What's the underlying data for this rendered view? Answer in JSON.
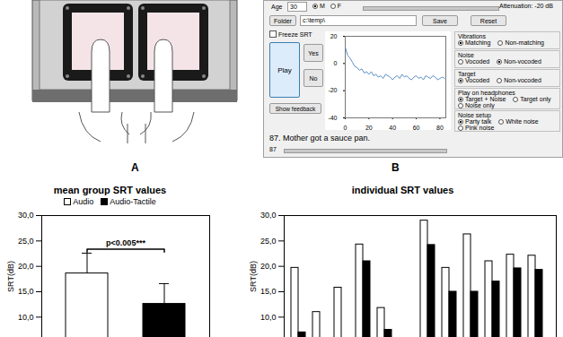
{
  "panels": [
    "A",
    "B"
  ],
  "screenshot": {
    "age_label": "Age",
    "age": "30",
    "sex_options": [
      "M",
      "F"
    ],
    "sex_selected": 0,
    "attenuation": "Attenuation: -20 dB",
    "folder_button": "Folder",
    "folder": "c:\\temp\\",
    "save": "Save",
    "reset": "Reset",
    "freeze": "Freeze SRT",
    "play": "Play",
    "yes": "Yes",
    "no": "No",
    "feedback": "Show feedback",
    "groups": [
      {
        "title": "Vibrations",
        "options": [
          "Matching",
          "Non-matching"
        ],
        "selected": 0
      },
      {
        "title": "Noise",
        "options": [
          "Vocoded",
          "Non-vocoded"
        ],
        "selected": 1
      },
      {
        "title": "Target",
        "options": [
          "Vocoded",
          "Non-vocoded"
        ],
        "selected": 0
      },
      {
        "title": "Play on headphones",
        "options": [
          "Target + Noise",
          "Target only",
          "Noise only"
        ],
        "selected": 0
      },
      {
        "title": "Noise setup",
        "options": [
          "Party talk",
          "White noise",
          "Pink noise"
        ],
        "selected": 0
      }
    ],
    "sentence": "87. Mother got a sauce pan.",
    "sentence_number": "87"
  },
  "chart_data": [
    {
      "type": "line",
      "x": [
        0,
        2,
        4,
        6,
        8,
        10,
        12,
        14,
        16,
        18,
        20,
        22,
        24,
        26,
        28,
        30,
        32,
        34,
        36,
        38,
        40,
        42,
        44,
        46,
        48,
        50,
        52,
        54,
        56,
        58,
        60,
        62,
        64,
        66,
        68,
        70,
        72,
        74,
        76,
        78,
        80,
        82,
        84
      ],
      "values": [
        12,
        6,
        4,
        1,
        -2,
        -3,
        -5,
        -4,
        -7,
        -6,
        -8,
        -6,
        -9,
        -8,
        -10,
        -9,
        -11,
        -8,
        -9,
        -10,
        -12,
        -10,
        -9,
        -11,
        -8,
        -10,
        -9,
        -11,
        -12,
        -10,
        -9,
        -11,
        -10,
        -12,
        -9,
        -10,
        -11,
        -9,
        -10,
        -12,
        -11,
        -10,
        -11
      ],
      "color": "#5b8fc7",
      "xlim": [
        0,
        85
      ],
      "xticks": [
        0,
        20,
        40,
        60,
        80
      ],
      "ylim": [
        -40,
        20
      ],
      "yticks": [
        -40,
        -20,
        0,
        20
      ]
    },
    {
      "type": "bar",
      "title": "mean group SRT values",
      "categories": [
        null
      ],
      "series": [
        {
          "name": "Audio",
          "color": "#ffffff",
          "values": [
            18.6
          ],
          "errors": [
            4.0
          ]
        },
        {
          "name": "Audio-Tactile",
          "color": "#000000",
          "values": [
            12.6
          ],
          "errors": [
            4.0
          ]
        }
      ],
      "ylabel": "SRT(dB)",
      "ylim": [
        6,
        30
      ],
      "yticks": [
        {
          "value": 10,
          "label": "10,0"
        },
        {
          "value": 15,
          "label": "15,0"
        },
        {
          "value": 20,
          "label": "20,0"
        },
        {
          "value": 25,
          "label": "25,0"
        },
        {
          "value": 30,
          "label": "30,0"
        }
      ],
      "annotation": "p<0.005***",
      "legend": "top",
      "tick_labels": "y"
    },
    {
      "type": "bar",
      "title": "individual SRT values",
      "categories": [
        null,
        null,
        null,
        null,
        null,
        null,
        null,
        null,
        null,
        null,
        null,
        null
      ],
      "series": [
        {
          "name": "Audio",
          "color": "#ffffff",
          "values": [
            19.7,
            11.0,
            15.8,
            24.3,
            11.8,
            null,
            29.0,
            19.7,
            26.3,
            21.0,
            22.3,
            22.1
          ]
        },
        {
          "name": "Audio-Tactile",
          "color": "#000000",
          "values": [
            7.0,
            null,
            null,
            21.0,
            7.5,
            null,
            24.2,
            15.0,
            15.0,
            17.0,
            19.6,
            19.3
          ]
        }
      ],
      "ylabel": "SRT(dB)",
      "ylim": [
        6,
        30
      ],
      "yticks": [
        {
          "value": 10,
          "label": "10,0"
        },
        {
          "value": 15,
          "label": "15,0"
        },
        {
          "value": 20,
          "label": "20,0"
        },
        {
          "value": 25,
          "label": "25,0"
        },
        {
          "value": 30,
          "label": "30,0"
        }
      ],
      "tick_labels": "y"
    }
  ]
}
